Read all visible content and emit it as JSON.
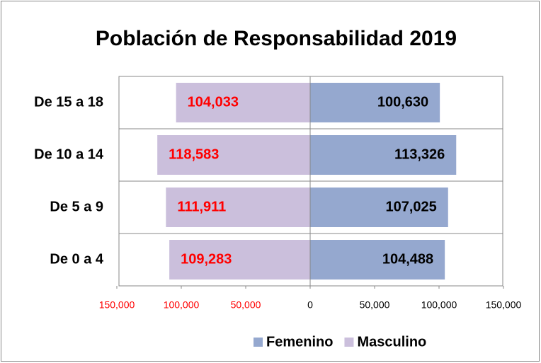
{
  "chart_data": {
    "type": "pyramid",
    "title": "Población de Responsabilidad 2019",
    "categories": [
      "De 15 a 18",
      "De 10 a 14",
      "De 5 a 9",
      "De 0 a 4"
    ],
    "series": [
      {
        "name": "Femenino",
        "color": "#95a8cf",
        "label_color": "#000000",
        "side": "right",
        "values": [
          100630,
          113326,
          107025,
          104488
        ],
        "value_labels": [
          "100,630",
          "113,326",
          "107,025",
          "104,488"
        ]
      },
      {
        "name": "Masculino",
        "color": "#cbbfdc",
        "label_color": "#ff0000",
        "side": "left",
        "values": [
          104033,
          118583,
          111911,
          109283
        ],
        "value_labels": [
          "104,033",
          "118,583",
          "111,911",
          "109,283"
        ]
      }
    ],
    "xlim": [
      -150000,
      150000
    ],
    "xticks": [
      {
        "value": -150000,
        "label": "150,000"
      },
      {
        "value": -100000,
        "label": "100,000"
      },
      {
        "value": -50000,
        "label": "50,000"
      },
      0,
      {
        "value": 50000,
        "label": "50,000"
      },
      {
        "value": 100000,
        "label": "100,000"
      },
      {
        "value": 150000,
        "label": "150,000"
      }
    ],
    "left_tick_color": "#ff0000",
    "right_tick_color": "#000000",
    "legend": "bottom"
  }
}
